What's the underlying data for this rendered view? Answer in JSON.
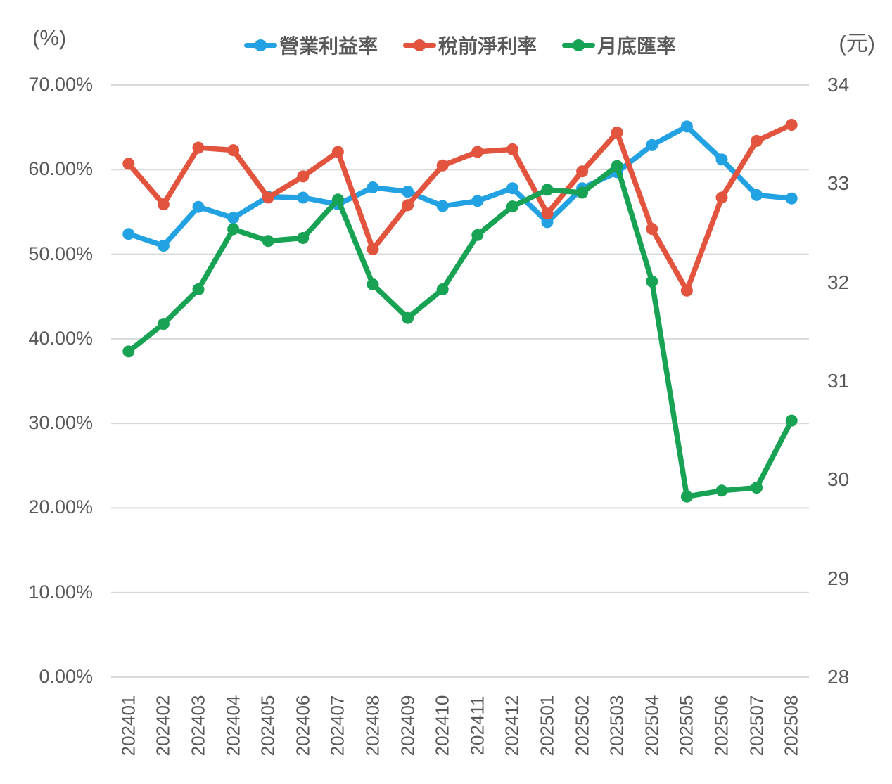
{
  "left_axis": {
    "unit": "(%)",
    "tick_values": [
      0,
      10,
      20,
      30,
      40,
      50,
      60,
      70
    ],
    "tick_labels": [
      "0.00%",
      "10.00%",
      "20.00%",
      "30.00%",
      "40.00%",
      "50.00%",
      "60.00%",
      "70.00%"
    ]
  },
  "right_axis": {
    "unit": "(元)",
    "tick_values": [
      28,
      29,
      30,
      31,
      32,
      33,
      34
    ],
    "tick_labels": [
      "28",
      "29",
      "30",
      "31",
      "32",
      "33",
      "34"
    ]
  },
  "colors": {
    "grid": "#d9d9d9",
    "axis_text": "#595959",
    "series_blue": "#22a2e3",
    "series_red": "#e2543e",
    "series_green": "#17a254"
  },
  "chart_data": {
    "type": "line",
    "title": "",
    "xlabel": "",
    "ylabel_left": "(%)",
    "ylabel_right": "(元)",
    "grid": "horizontal",
    "legend_position": "top",
    "left_ylim": [
      0,
      70
    ],
    "right_ylim": [
      28,
      34
    ],
    "categories": [
      "202401",
      "202402",
      "202403",
      "202404",
      "202405",
      "202406",
      "202407",
      "202408",
      "202409",
      "202410",
      "202411",
      "202412",
      "202501",
      "202502",
      "202503",
      "202504",
      "202505",
      "202506",
      "202507",
      "202508"
    ],
    "series": [
      {
        "name": "營業利益率",
        "axis": "left",
        "unit": "%",
        "color": "#22a2e3",
        "values": [
          52.4,
          51.0,
          55.6,
          54.3,
          56.8,
          56.7,
          55.9,
          57.9,
          57.4,
          55.7,
          56.3,
          57.8,
          53.8,
          57.8,
          59.7,
          62.9,
          65.1,
          61.2,
          57.0,
          56.6
        ]
      },
      {
        "name": "稅前淨利率",
        "axis": "left",
        "unit": "%",
        "color": "#e2543e",
        "values": [
          60.7,
          55.9,
          62.6,
          62.3,
          56.7,
          59.2,
          62.1,
          50.6,
          55.8,
          60.5,
          62.1,
          62.4,
          54.8,
          59.8,
          64.4,
          53.0,
          45.7,
          56.7,
          63.4,
          65.3
        ]
      },
      {
        "name": "月底匯率",
        "axis": "right",
        "unit": "元",
        "color": "#17a254",
        "values": [
          31.3,
          31.58,
          31.93,
          32.54,
          32.42,
          32.45,
          32.84,
          31.98,
          31.64,
          31.93,
          32.48,
          32.77,
          32.94,
          32.91,
          33.18,
          32.01,
          29.83,
          29.89,
          29.92,
          30.6
        ]
      }
    ]
  }
}
